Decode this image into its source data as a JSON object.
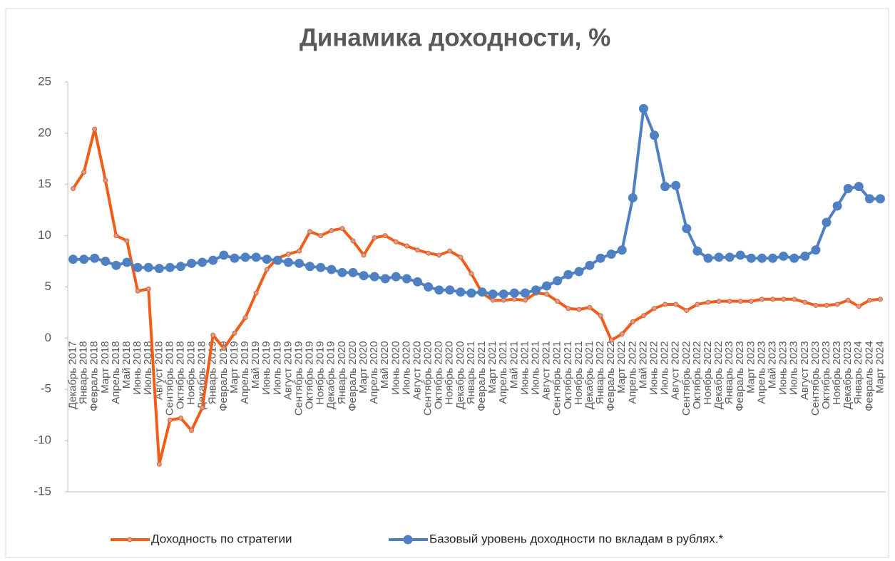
{
  "chart_data": {
    "type": "line",
    "title": "Динамика доходности, %",
    "categories": [
      "Декабрь 2017",
      "Январь 2018",
      "Февраль 2018",
      "Март 2018",
      "Апрель 2018",
      "Май 2018",
      "Июнь 2018",
      "Июль 2018",
      "Август 2018",
      "Сентябрь 2018",
      "Октябрь 2018",
      "Ноябрь 2018",
      "Декабрь 2018",
      "Январь 2019",
      "Февраль 2019",
      "Март 2019",
      "Апрель 2019",
      "Май 2019",
      "Июнь 2019",
      "Июль 2019",
      "Август 2019",
      "Сентябрь 2019",
      "Октябрь 2019",
      "Ноябрь 2019",
      "Декабрь 2019",
      "Январь 2020",
      "Февраль 2020",
      "Март 2020",
      "Апрель 2020",
      "Май 2020",
      "Июнь 2020",
      "Июль 2020",
      "Август 2020",
      "Сентябрь 2020",
      "Октябрь 2020",
      "Ноябрь 2020",
      "Декабрь 2020",
      "Январь 2021",
      "Февраль 2021",
      "Март 2021",
      "Апрель 2021",
      "Май 2021",
      "Июнь 2021",
      "Июль 2021",
      "Август 2021",
      "Сентябрь 2021",
      "Октябрь 2021",
      "Ноябрь 2021",
      "Декабрь 2021",
      "Январь 2022",
      "Февраль 2022",
      "Март 2022",
      "Апрель 2022",
      "Май 2022",
      "Июнь 2022",
      "Июль 2022",
      "Август 2022",
      "Сентябрь 2022",
      "Октябрь 2022",
      "Ноябрь 2022",
      "Декабрь 2022",
      "Январь 2023",
      "Февраль 2023",
      "Март 2023",
      "Апрель 2023",
      "Май 2023",
      "Июнь 2023",
      "Июль 2023",
      "Август 2023",
      "Сентябрь 2023",
      "Октябрь 2023",
      "Ноябрь 2023",
      "Декабрь 2023",
      "Январь 2024",
      "Февраль 2024",
      "Март 2024"
    ],
    "series": [
      {
        "name": "Доходность по стратегии",
        "color": "#f25c19",
        "marker_color": "#c4a3a8",
        "marker_size": 3,
        "values": [
          14.6,
          16.2,
          20.4,
          15.4,
          10.0,
          9.5,
          4.6,
          4.8,
          -12.3,
          -8.0,
          -7.8,
          -9.0,
          -6.8,
          0.3,
          -1.0,
          0.5,
          2.0,
          4.4,
          6.7,
          7.8,
          8.2,
          8.5,
          10.4,
          10.0,
          10.5,
          10.7,
          9.5,
          8.1,
          9.8,
          10.0,
          9.4,
          9.0,
          8.6,
          8.3,
          8.1,
          8.5,
          7.9,
          6.3,
          4.4,
          3.7,
          3.7,
          3.8,
          3.7,
          4.4,
          4.3,
          3.6,
          2.9,
          2.8,
          3.0,
          2.2,
          -0.2,
          0.4,
          1.6,
          2.2,
          2.9,
          3.3,
          3.3,
          2.7,
          3.3,
          3.5,
          3.6,
          3.6,
          3.6,
          3.6,
          3.8,
          3.8,
          3.8,
          3.8,
          3.5,
          3.2,
          3.2,
          3.3,
          3.7,
          3.1,
          3.7,
          3.8
        ]
      },
      {
        "name": "Базовый уровень доходности по вкладам в рублях.*",
        "color": "#4f81c2",
        "marker_color": "#4f81c2",
        "marker_size": 6,
        "values": [
          7.7,
          7.7,
          7.8,
          7.5,
          7.1,
          7.4,
          6.9,
          6.9,
          6.8,
          6.9,
          7.0,
          7.3,
          7.4,
          7.6,
          8.1,
          7.8,
          7.9,
          7.9,
          7.7,
          7.6,
          7.4,
          7.3,
          7.0,
          6.9,
          6.7,
          6.4,
          6.4,
          6.1,
          6.0,
          5.8,
          6.0,
          5.8,
          5.5,
          5.0,
          4.7,
          4.7,
          4.5,
          4.4,
          4.5,
          4.3,
          4.3,
          4.4,
          4.4,
          4.7,
          5.1,
          5.6,
          6.2,
          6.5,
          7.1,
          7.8,
          8.2,
          8.6,
          13.7,
          22.4,
          19.8,
          14.8,
          14.9,
          10.7,
          8.5,
          7.8,
          7.9,
          7.9,
          8.1,
          7.8,
          7.8,
          7.8,
          8.0,
          7.8,
          8.0,
          8.6,
          11.3,
          12.9,
          14.6,
          14.8,
          13.6,
          13.6
        ]
      }
    ],
    "ylim": [
      -15,
      25
    ],
    "yticks": [
      -15,
      -10,
      -5,
      0,
      5,
      10,
      15,
      20,
      25
    ],
    "grid": false,
    "legend": "bottom"
  }
}
